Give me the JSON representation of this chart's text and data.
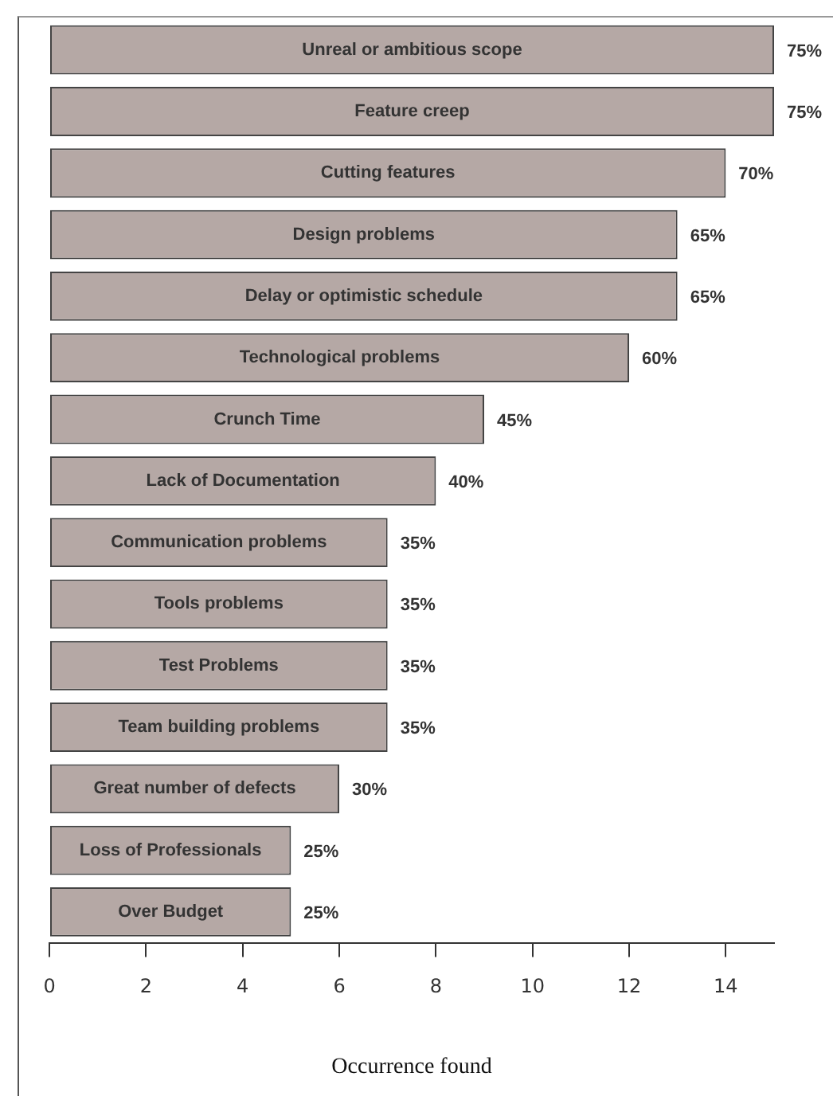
{
  "chart_data": {
    "type": "bar",
    "orientation": "horizontal",
    "xlabel": "Occurrence found",
    "categories": [
      "Unreal or ambitious scope",
      "Feature creep",
      "Cutting features",
      "Design problems",
      "Delay or optimistic schedule",
      "Technological problems",
      "Crunch Time",
      "Lack of Documentation",
      "Communication problems",
      "Tools problems",
      "Test Problems",
      "Team building problems",
      "Great number of defects",
      "Loss of Professionals",
      "Over Budget"
    ],
    "values": [
      15,
      15,
      14,
      13,
      13,
      12,
      9,
      8,
      7,
      7,
      7,
      7,
      6,
      5,
      5
    ],
    "annotations": [
      {
        "text": "75%",
        "x": 15,
        "y": "Unreal or ambitious scope"
      },
      {
        "text": "75%",
        "x": 15,
        "y": "Feature creep"
      },
      {
        "text": "70%",
        "x": 14,
        "y": "Cutting features"
      },
      {
        "text": "65%",
        "x": 13,
        "y": "Design problems"
      },
      {
        "text": "65%",
        "x": 13,
        "y": "Delay or optimistic schedule"
      },
      {
        "text": "60%",
        "x": 12,
        "y": "Technological problems"
      },
      {
        "text": "45%",
        "x": 9,
        "y": "Crunch Time"
      },
      {
        "text": "40%",
        "x": 8,
        "y": "Lack of Documentation"
      },
      {
        "text": "35%",
        "x": 7,
        "y": "Communication problems"
      },
      {
        "text": "35%",
        "x": 7,
        "y": "Tools problems"
      },
      {
        "text": "35%",
        "x": 7,
        "y": "Test Problems"
      },
      {
        "text": "35%",
        "x": 7,
        "y": "Team building problems"
      },
      {
        "text": "30%",
        "x": 6,
        "y": "Great number of defects"
      },
      {
        "text": "25%",
        "x": 5,
        "y": "Loss of Professionals"
      },
      {
        "text": "25%",
        "x": 5,
        "y": "Over Budget"
      }
    ],
    "color": "#b5a8a5",
    "xlim": [
      0,
      15
    ],
    "xticks": [
      0,
      2,
      4,
      6,
      8,
      10,
      12,
      14
    ],
    "grid": false,
    "legend": false
  }
}
